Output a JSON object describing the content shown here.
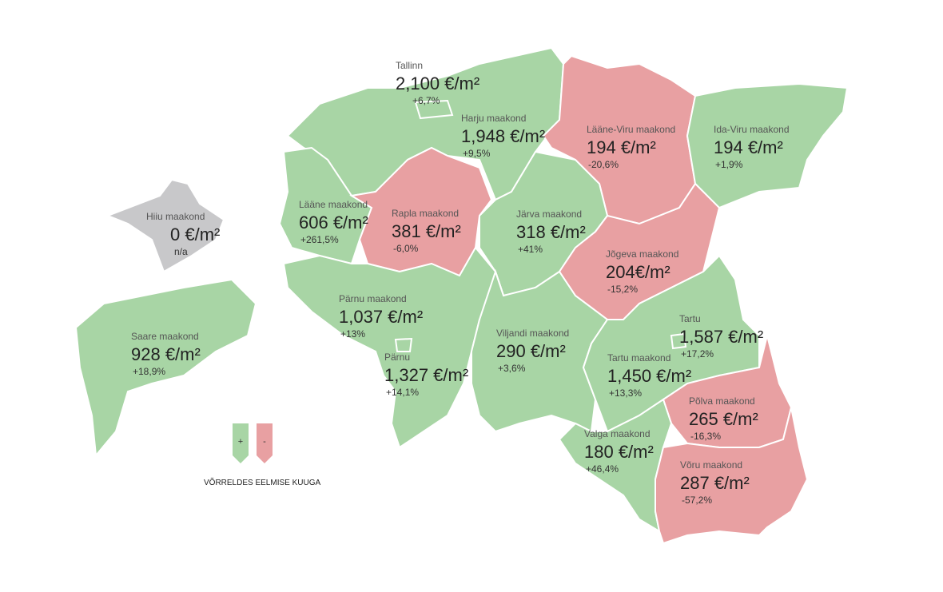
{
  "regions": [
    {
      "name": "Harju maakond",
      "price": "1,948 €/m²",
      "change": "+9,5%",
      "color": "#a8d5a5"
    },
    {
      "name": "Lääne-Viru maakond",
      "price": "194 €/m²",
      "change": "-20,6%",
      "color": "#e8a0a2"
    },
    {
      "name": "Ida-Viru maakond",
      "price": "194 €/m²",
      "change": "+1,9%",
      "color": "#a8d5a5"
    },
    {
      "name": "Hiiu maakond",
      "price": "0 €/m²",
      "change": "n/a",
      "color": "#c8c8ca"
    },
    {
      "name": "Lääne maakond",
      "price": "606 €/m²",
      "change": "+261,5%",
      "color": "#a8d5a5"
    },
    {
      "name": "Rapla maakond",
      "price": "381 €/m²",
      "change": "-6,0%",
      "color": "#e8a0a2"
    },
    {
      "name": "Järva maakond",
      "price": "318 €/m²",
      "change": "+41%",
      "color": "#a8d5a5"
    },
    {
      "name": "Jõgeva maakond",
      "price": "204€/m²",
      "change": "-15,2%",
      "color": "#e8a0a2"
    },
    {
      "name": "Pärnu maakond",
      "price": "1,037 €/m²",
      "change": "+13%",
      "color": "#a8d5a5"
    },
    {
      "name": "Saare maakond",
      "price": "928 €/m²",
      "change": "+18,9%",
      "color": "#a8d5a5"
    },
    {
      "name": "Viljandi maakond",
      "price": "290 €/m²",
      "change": "+3,6%",
      "color": "#a8d5a5"
    },
    {
      "name": "Tartu maakond",
      "price": "1,450 €/m²",
      "change": "+13,3%",
      "color": "#a8d5a5"
    },
    {
      "name": "Põlva maakond",
      "price": "265 €/m²",
      "change": "-16,3%",
      "color": "#e8a0a2"
    },
    {
      "name": "Valga maakond",
      "price": "180 €/m²",
      "change": "+46,4%",
      "color": "#a8d5a5"
    },
    {
      "name": "Võru maakond",
      "price": "287 €/m²",
      "change": "-57,2%",
      "color": "#e8a0a2"
    },
    {
      "name": "Tallinn",
      "price": "2,100 €/m²",
      "change": "+6,7%",
      "color": "#a8d5a5"
    },
    {
      "name": "Pärnu",
      "price": "1,327 €/m²",
      "change": "+14,1%",
      "color": "#a8d5a5"
    },
    {
      "name": "Tartu",
      "price": "1,587 €/m²",
      "change": "+17,2%",
      "color": "#a8d5a5"
    }
  ],
  "legend": {
    "increase": "+",
    "increase_color": "#a8d5a5",
    "decrease": "-",
    "decrease_color": "#e8a0a2",
    "caption": "VÕRRELDES EELMISE KUUGA"
  }
}
